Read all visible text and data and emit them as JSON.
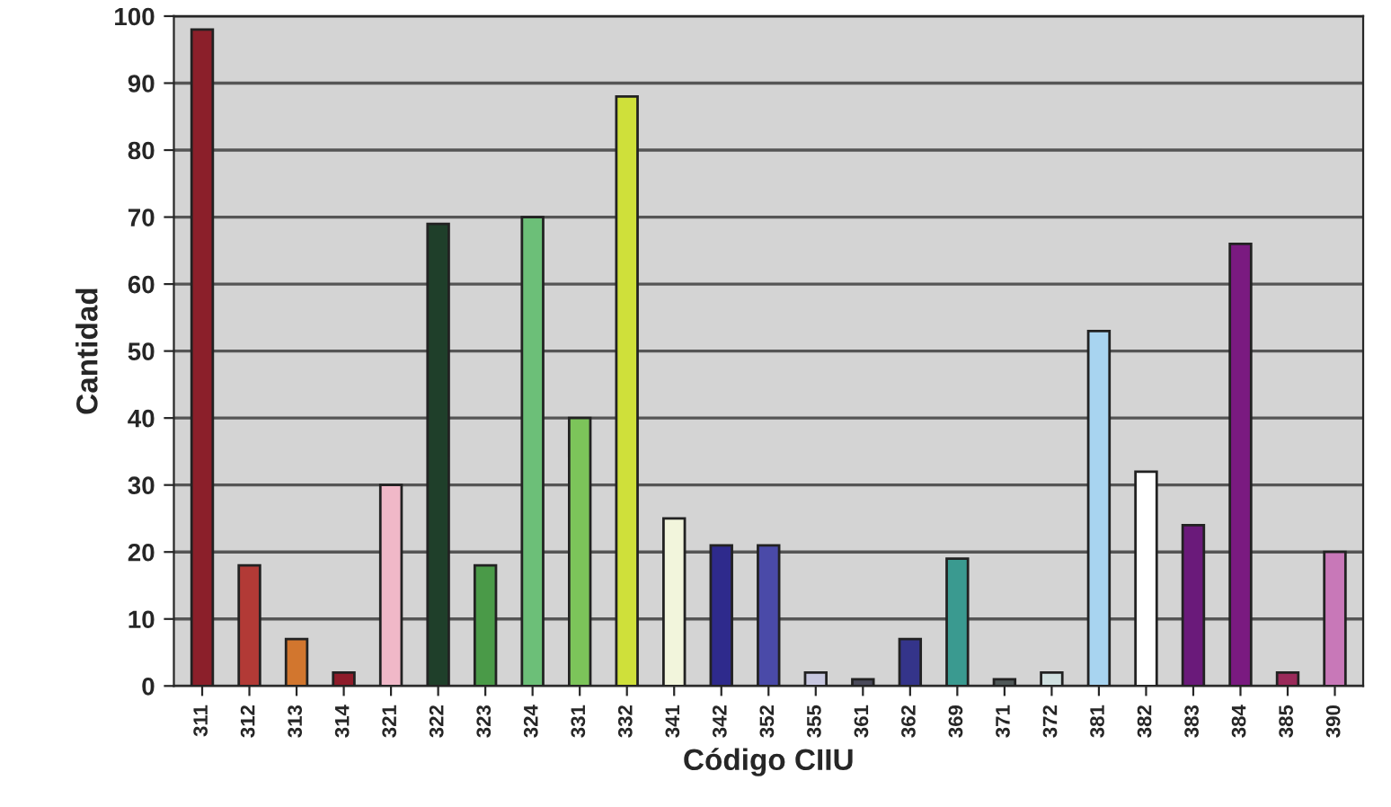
{
  "chart_data": {
    "type": "bar",
    "xlabel": "Código CIIU",
    "ylabel": "Cantidad",
    "categories": [
      "311",
      "312",
      "313",
      "314",
      "321",
      "322",
      "323",
      "324",
      "331",
      "332",
      "341",
      "342",
      "352",
      "355",
      "361",
      "362",
      "369",
      "371",
      "372",
      "381",
      "382",
      "383",
      "384",
      "385",
      "390"
    ],
    "values": [
      98,
      18,
      7,
      2,
      30,
      69,
      18,
      70,
      40,
      88,
      25,
      21,
      21,
      2,
      1,
      7,
      19,
      1,
      2,
      53,
      32,
      24,
      66,
      2,
      20
    ],
    "colors": [
      "#8b1f2a",
      "#b23a36",
      "#d2762e",
      "#8e1c2a",
      "#f0b8c8",
      "#1f3f2a",
      "#4a9a48",
      "#6cbf78",
      "#7cc45a",
      "#cfe03a",
      "#f2f5dc",
      "#2e2a8c",
      "#4a4aa8",
      "#c8c8e0",
      "#4a4a5a",
      "#34348a",
      "#3a9a90",
      "#505858",
      "#d0e0e0",
      "#a8d4f0",
      "#ffffff",
      "#6a1a7a",
      "#7a1a80",
      "#9a2a5a",
      "#c878b8"
    ],
    "ylim": [
      0,
      100
    ],
    "yticks": [
      0,
      10,
      20,
      30,
      40,
      50,
      60,
      70,
      80,
      90,
      100
    ],
    "grid": "y"
  }
}
